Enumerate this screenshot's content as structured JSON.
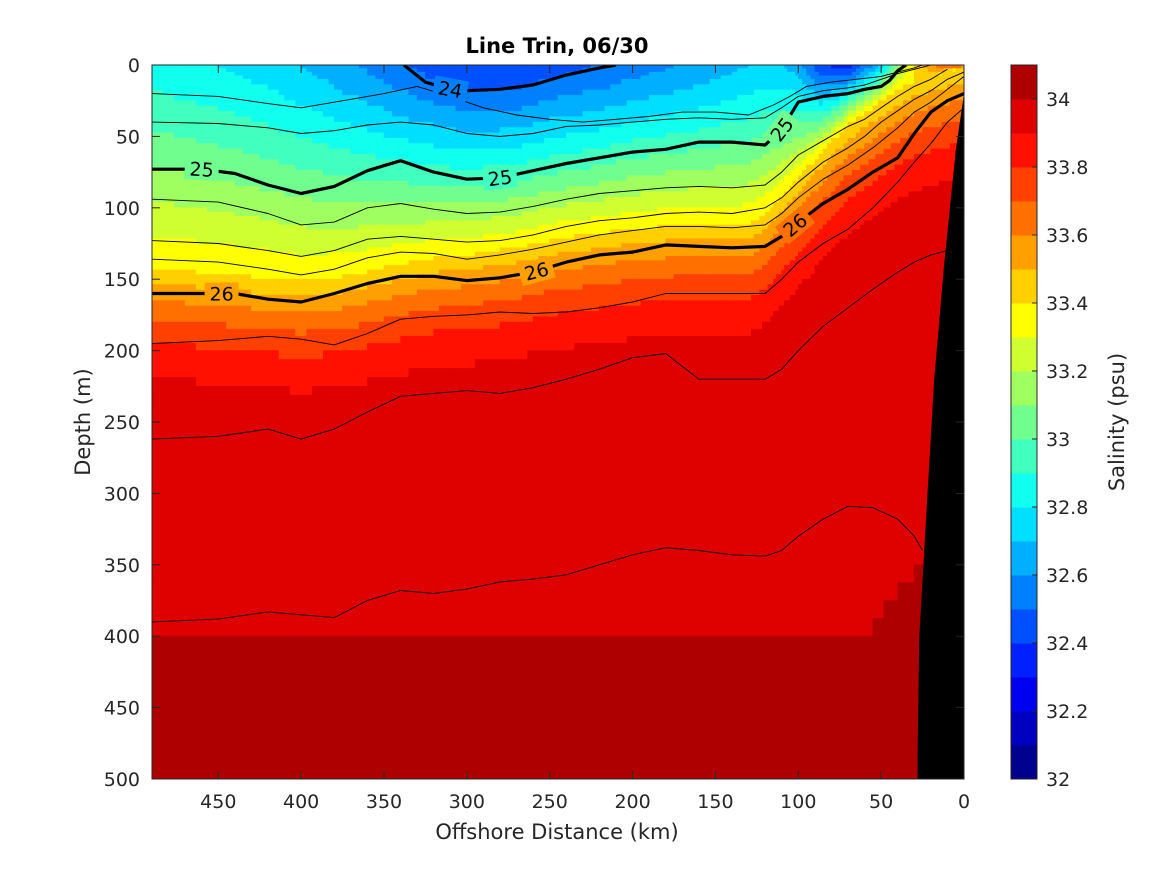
{
  "chart_data": {
    "type": "heatmap",
    "subtype": "filled-contour section with density contour overlay",
    "title": "Line Trin, 06/30",
    "xlabel": "Offshore Distance (km)",
    "ylabel": "Depth (m)",
    "xlim": [
      490,
      0
    ],
    "x_reversed": true,
    "ylim": [
      0,
      500
    ],
    "y_reversed": true,
    "xticks": [
      "450",
      "400",
      "350",
      "300",
      "250",
      "200",
      "150",
      "100",
      "50",
      "0"
    ],
    "yticks": [
      "0",
      "50",
      "100",
      "150",
      "200",
      "250",
      "300",
      "350",
      "400",
      "450",
      "500"
    ],
    "colorbar": {
      "label": "Salinity (psu)",
      "range": [
        32,
        34.1
      ],
      "step": 0.1,
      "tick_labels": [
        "32",
        "32.2",
        "32.4",
        "32.6",
        "32.8",
        "33",
        "33.2",
        "33.4",
        "33.6",
        "33.8",
        "34"
      ],
      "colormap": "jet",
      "colors": [
        "#00008F",
        "#0000C0",
        "#0000F0",
        "#0020FF",
        "#0050FF",
        "#0080FF",
        "#00AFFF",
        "#00DFFF",
        "#10FFEF",
        "#40FFBF",
        "#70FF8F",
        "#9FFF60",
        "#CFFF30",
        "#FFFF00",
        "#FFCF00",
        "#FF9F00",
        "#FF7000",
        "#FF4000",
        "#FF1000",
        "#DF0000",
        "#AF0000"
      ]
    },
    "grid": false,
    "legend": "none",
    "salinity_field": {
      "x": [
        490,
        450,
        420,
        400,
        380,
        350,
        320,
        300,
        270,
        250,
        220,
        200,
        170,
        150,
        130,
        120,
        110,
        100,
        85,
        70,
        55,
        45,
        40,
        30,
        20,
        10,
        0
      ],
      "depth": [
        0,
        10,
        25,
        40,
        55,
        70,
        85,
        100,
        112,
        125,
        137,
        150,
        165,
        180,
        200,
        225,
        250,
        300,
        350,
        400,
        450,
        500
      ],
      "surface_value": [
        32.85,
        32.8,
        32.75,
        32.7,
        32.65,
        32.55,
        32.45,
        32.4,
        32.4,
        32.45,
        32.5,
        32.55,
        32.6,
        32.65,
        32.7,
        32.72,
        32.7,
        32.65,
        32.4,
        32.35,
        32.6,
        32.9,
        33.1,
        33.4,
        33.6,
        33.7,
        33.75
      ],
      "isohaline_33p4_depth": [
        143,
        146,
        150,
        152,
        150,
        142,
        135,
        133,
        128,
        123,
        118,
        115,
        112,
        112,
        112,
        105,
        92,
        80,
        60,
        42,
        30,
        22,
        18,
        12,
        8,
        5,
        2
      ],
      "deep_value": 33.95,
      "bottom_value": 34.05
    },
    "density_contours": [
      {
        "level": "24",
        "labeled": true,
        "bold": true,
        "x": [
          338,
          325,
          310,
          300,
          280,
          260,
          240,
          220,
          210
        ],
        "depth": [
          0,
          12,
          17,
          18,
          17,
          14,
          7,
          2,
          0
        ]
      },
      {
        "level": "25",
        "labeled": true,
        "bold": true,
        "x": [
          490,
          460,
          440,
          420,
          400,
          380,
          360,
          340,
          320,
          300,
          280,
          260,
          240,
          220,
          200,
          180,
          160,
          140,
          120,
          110,
          100,
          85,
          70,
          60,
          50,
          45,
          40,
          35
        ],
        "depth": [
          73,
          73,
          76,
          84,
          90,
          85,
          74,
          67,
          75,
          80,
          79,
          74,
          69,
          65,
          61,
          59,
          54,
          54,
          56,
          45,
          26,
          22,
          20,
          17,
          15,
          11,
          4,
          0
        ]
      },
      {
        "level": "26",
        "labeled": true,
        "bold": true,
        "x": [
          490,
          460,
          440,
          420,
          400,
          380,
          360,
          340,
          320,
          300,
          280,
          260,
          240,
          220,
          200,
          180,
          160,
          140,
          120,
          110,
          100,
          85,
          70,
          55,
          40,
          30,
          20,
          10,
          0
        ],
        "depth": [
          160,
          160,
          160,
          164,
          166,
          160,
          153,
          148,
          148,
          151,
          149,
          145,
          138,
          133,
          131,
          126,
          127,
          128,
          127,
          120,
          110,
          97,
          87,
          75,
          65,
          48,
          33,
          25,
          20
        ]
      },
      {
        "level": "",
        "labeled": false,
        "bold": false,
        "x": [
          490,
          450,
          420,
          400,
          370,
          350,
          330,
          310,
          290,
          270,
          250,
          230,
          210,
          190,
          170,
          150,
          130,
          115,
          105,
          95,
          80,
          65,
          50,
          40,
          30,
          25
        ],
        "depth": [
          20,
          22,
          27,
          30,
          24,
          20,
          15,
          22,
          30,
          35,
          38,
          40,
          38,
          36,
          33,
          33,
          35,
          28,
          22,
          15,
          12,
          10,
          8,
          5,
          2,
          0
        ]
      },
      {
        "level": "",
        "labeled": false,
        "bold": false,
        "x": [
          490,
          450,
          420,
          400,
          380,
          360,
          340,
          320,
          300,
          280,
          260,
          240,
          220,
          200,
          180,
          160,
          140,
          120,
          110,
          100,
          85,
          70,
          60,
          50,
          40,
          30,
          20
        ],
        "depth": [
          40,
          41,
          44,
          48,
          46,
          42,
          40,
          42,
          48,
          50,
          48,
          43,
          42,
          40,
          38,
          37,
          38,
          37,
          30,
          22,
          18,
          16,
          14,
          10,
          6,
          3,
          0
        ]
      },
      {
        "level": "",
        "labeled": false,
        "bold": false,
        "x": [
          490,
          450,
          420,
          400,
          380,
          360,
          340,
          320,
          300,
          280,
          260,
          240,
          220,
          200,
          180,
          160,
          140,
          120,
          110,
          100,
          85,
          70,
          60,
          50,
          40,
          30,
          20,
          10
        ],
        "depth": [
          94,
          96,
          104,
          112,
          110,
          100,
          97,
          101,
          104,
          103,
          99,
          94,
          90,
          88,
          86,
          85,
          86,
          84,
          75,
          63,
          53,
          43,
          38,
          30,
          22,
          15,
          10,
          3
        ]
      },
      {
        "level": "",
        "labeled": false,
        "bold": false,
        "x": [
          490,
          450,
          420,
          400,
          380,
          360,
          340,
          320,
          300,
          280,
          260,
          240,
          220,
          200,
          180,
          160,
          140,
          120,
          110,
          100,
          85,
          70,
          60,
          50,
          40,
          30,
          20,
          10,
          0
        ],
        "depth": [
          123,
          125,
          130,
          134,
          130,
          122,
          120,
          122,
          124,
          123,
          119,
          113,
          109,
          107,
          104,
          103,
          104,
          100,
          93,
          82,
          68,
          58,
          50,
          40,
          32,
          24,
          18,
          10,
          5
        ]
      },
      {
        "level": "",
        "labeled": false,
        "bold": false,
        "x": [
          490,
          450,
          420,
          400,
          380,
          360,
          340,
          320,
          300,
          280,
          260,
          240,
          220,
          200,
          180,
          160,
          140,
          120,
          110,
          100,
          85,
          70,
          55,
          40,
          30,
          20,
          10,
          0
        ],
        "depth": [
          136,
          138,
          143,
          147,
          143,
          135,
          131,
          132,
          136,
          133,
          129,
          124,
          119,
          116,
          113,
          113,
          114,
          112,
          104,
          93,
          80,
          70,
          58,
          44,
          33,
          26,
          17,
          8
        ]
      },
      {
        "level": "",
        "labeled": false,
        "bold": false,
        "x": [
          490,
          450,
          420,
          400,
          380,
          360,
          340,
          320,
          300,
          280,
          260,
          240,
          220,
          200,
          180,
          160,
          140,
          120,
          110,
          100,
          85,
          70,
          55,
          40,
          30,
          20,
          10,
          0
        ],
        "depth": [
          195,
          193,
          190,
          192,
          196,
          188,
          178,
          176,
          175,
          173,
          174,
          173,
          170,
          166,
          160,
          160,
          160,
          160,
          150,
          138,
          125,
          115,
          100,
          82,
          68,
          55,
          40,
          30
        ]
      },
      {
        "level": "",
        "labeled": false,
        "bold": false,
        "x": [
          490,
          450,
          420,
          400,
          380,
          360,
          340,
          320,
          300,
          280,
          260,
          240,
          220,
          200,
          180,
          160,
          140,
          120,
          110,
          100,
          85,
          70,
          55,
          40,
          30,
          20,
          10
        ],
        "depth": [
          262,
          260,
          255,
          262,
          255,
          243,
          232,
          230,
          228,
          230,
          226,
          220,
          213,
          205,
          202,
          220,
          220,
          220,
          213,
          200,
          183,
          170,
          157,
          145,
          138,
          133,
          130
        ]
      },
      {
        "level": "",
        "labeled": false,
        "bold": false,
        "x": [
          490,
          450,
          420,
          400,
          380,
          360,
          340,
          320,
          300,
          280,
          260,
          240,
          220,
          200,
          180,
          160,
          140,
          120,
          110,
          100,
          85,
          70,
          55,
          40,
          30,
          25
        ],
        "depth": [
          390,
          388,
          383,
          385,
          387,
          375,
          368,
          370,
          367,
          362,
          360,
          357,
          350,
          343,
          338,
          340,
          343,
          344,
          340,
          330,
          318,
          309,
          310,
          318,
          330,
          340
        ]
      }
    ],
    "bathymetry": {
      "x": [
        0,
        5,
        12,
        18,
        22,
        27,
        28,
        28
      ],
      "depth": [
        20,
        60,
        140,
        220,
        300,
        400,
        480,
        500
      ]
    }
  }
}
